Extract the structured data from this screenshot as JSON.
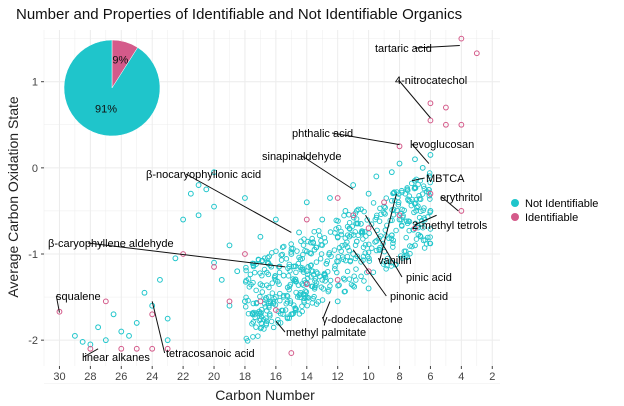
{
  "chart_data": {
    "type": "scatter",
    "title": "Number and Properties of Identifiable and Not Identifiable Organics",
    "xlabel": "Carbon Number",
    "ylabel": "Average Carbon Oxidation State",
    "xlim": [
      31,
      1.5
    ],
    "ylim": [
      -2.3,
      1.6
    ],
    "x_ticks": [
      "30",
      "28",
      "26",
      "24",
      "22",
      "20",
      "18",
      "16",
      "14",
      "12",
      "10",
      "8",
      "6",
      "4",
      "2"
    ],
    "y_ticks": [
      "-2",
      "-1",
      "0",
      "1"
    ],
    "grid": true,
    "legend_position": "right",
    "colors": {
      "not_identifiable": "#1fc5cb",
      "identifiable": "#d45a8a",
      "background": "#ffffff",
      "grid": "#ececec"
    },
    "series": [
      {
        "name": "Not Identifiable",
        "color": "#1fc5cb",
        "points": [
          [
            29,
            -1.95
          ],
          [
            28.5,
            -2.02
          ],
          [
            28,
            -2.05
          ],
          [
            27.5,
            -1.85
          ],
          [
            27,
            -2.0
          ],
          [
            26.5,
            -1.7
          ],
          [
            26,
            -1.9
          ],
          [
            25.5,
            -1.95
          ],
          [
            25,
            -1.8
          ],
          [
            24.5,
            -1.45
          ],
          [
            24,
            -1.6
          ],
          [
            23.5,
            -1.3
          ],
          [
            23,
            -1.75
          ],
          [
            23,
            -2.0
          ],
          [
            22.5,
            -1.05
          ],
          [
            22,
            -0.6
          ],
          [
            21.5,
            -0.3
          ],
          [
            21,
            -0.2
          ],
          [
            21,
            -0.55
          ],
          [
            20.5,
            -0.25
          ],
          [
            20,
            -0.45
          ],
          [
            20,
            -1.1
          ],
          [
            19.5,
            -1.3
          ],
          [
            19,
            -0.9
          ],
          [
            19,
            -1.6
          ],
          [
            18.5,
            -1.2
          ],
          [
            18,
            -1.55
          ],
          [
            17.5,
            -1.7
          ],
          [
            17,
            -0.8
          ],
          [
            17,
            -1.35
          ],
          [
            16.5,
            -1.1
          ],
          [
            16,
            -1.5
          ],
          [
            16,
            -0.6
          ],
          [
            15.5,
            -1.25
          ],
          [
            15,
            -1.0
          ],
          [
            15,
            -1.7
          ],
          [
            14.5,
            -0.75
          ],
          [
            14,
            -1.2
          ],
          [
            14,
            -0.4
          ],
          [
            13.5,
            -0.95
          ],
          [
            13,
            -0.6
          ],
          [
            13,
            -1.3
          ],
          [
            12.5,
            -0.35
          ],
          [
            12,
            -0.8
          ],
          [
            12,
            -1.55
          ],
          [
            11.5,
            -0.5
          ],
          [
            11,
            -0.2
          ],
          [
            11,
            -1.0
          ],
          [
            10.5,
            -0.65
          ],
          [
            10,
            -0.3
          ],
          [
            10,
            -1.4
          ],
          [
            9.5,
            -0.1
          ],
          [
            9.5,
            -0.85
          ],
          [
            9,
            -0.45
          ],
          [
            8.5,
            -0.05
          ],
          [
            8.5,
            -1.1
          ],
          [
            8,
            0.05
          ],
          [
            8,
            -0.6
          ],
          [
            7.5,
            -0.25
          ],
          [
            7,
            0.1
          ],
          [
            7,
            -0.9
          ],
          [
            6.5,
            0.0
          ],
          [
            6,
            0.15
          ],
          [
            6,
            -0.5
          ],
          [
            18,
            -0.35
          ],
          [
            20,
            -0.05
          ]
        ]
      },
      {
        "name": "Identifiable",
        "color": "#d45a8a",
        "points": [
          [
            30,
            -1.67
          ],
          [
            28,
            -2.1
          ],
          [
            27,
            -1.55
          ],
          [
            26,
            -2.1
          ],
          [
            25,
            -2.1
          ],
          [
            24,
            -2.1
          ],
          [
            24,
            -1.7
          ],
          [
            23,
            -2.1
          ],
          [
            22,
            -1.0
          ],
          [
            20,
            -1.15
          ],
          [
            19,
            -1.55
          ],
          [
            18,
            -1.0
          ],
          [
            17,
            -1.55
          ],
          [
            16,
            -1.65
          ],
          [
            15,
            -2.15
          ],
          [
            14,
            -0.6
          ],
          [
            14,
            -1.35
          ],
          [
            12,
            -1.3
          ],
          [
            12,
            -0.35
          ],
          [
            11,
            -0.55
          ],
          [
            10,
            -0.7
          ],
          [
            10,
            -1.2
          ],
          [
            9,
            -0.4
          ],
          [
            8,
            0.25
          ],
          [
            8,
            -0.55
          ],
          [
            7,
            -0.7
          ],
          [
            6,
            0.55
          ],
          [
            6,
            0.75
          ],
          [
            6,
            -0.3
          ],
          [
            5,
            0.5
          ],
          [
            5,
            0.7
          ],
          [
            4,
            1.5
          ],
          [
            4,
            0.5
          ],
          [
            4,
            -0.5
          ],
          [
            3,
            1.33
          ]
        ]
      }
    ],
    "pie": {
      "slices": [
        {
          "name": "Not Identifiable",
          "value": 91,
          "label": "91%",
          "color": "#1fc5cb"
        },
        {
          "name": "Identifiable",
          "value": 9,
          "label": "9%",
          "color": "#d45a8a"
        }
      ]
    },
    "annotations": [
      {
        "text": "tartaric acid",
        "x": 4.1,
        "y": 1.42
      },
      {
        "text": "4-nitrocatechol",
        "x": 6,
        "y": 0.58
      },
      {
        "text": "phthalic acid",
        "x": 8,
        "y": 0.27
      },
      {
        "text": "levoglucosan",
        "x": 6.1,
        "y": 0.05
      },
      {
        "text": "sinapinaldehyde",
        "x": 11,
        "y": -0.25
      },
      {
        "text": "β-nocaryophyllonic acid",
        "x": 15,
        "y": -0.75
      },
      {
        "text": "MBTCA",
        "x": 7.2,
        "y": -0.15
      },
      {
        "text": "erythritol",
        "x": 4.2,
        "y": -0.5
      },
      {
        "text": "2-methyl tetrols",
        "x": 5.6,
        "y": -0.55
      },
      {
        "text": "β-caryophyllene aldehyde",
        "x": 15.4,
        "y": -1.15
      },
      {
        "text": "vanillin",
        "x": 8.2,
        "y": -0.3
      },
      {
        "text": "pinic acid",
        "x": 10.2,
        "y": -0.55
      },
      {
        "text": "pinonic acid",
        "x": 11,
        "y": -0.95
      },
      {
        "text": "squalene",
        "x": 30,
        "y": -1.68
      },
      {
        "text": "γ-dodecalactone",
        "x": 12.5,
        "y": -1.55
      },
      {
        "text": "methyl palmitate",
        "x": 16,
        "y": -1.78
      },
      {
        "text": "linear alkanes",
        "x": 27.5,
        "y": -2.1
      },
      {
        "text": "tetracosanoic acid",
        "x": 24,
        "y": -1.55
      }
    ]
  }
}
